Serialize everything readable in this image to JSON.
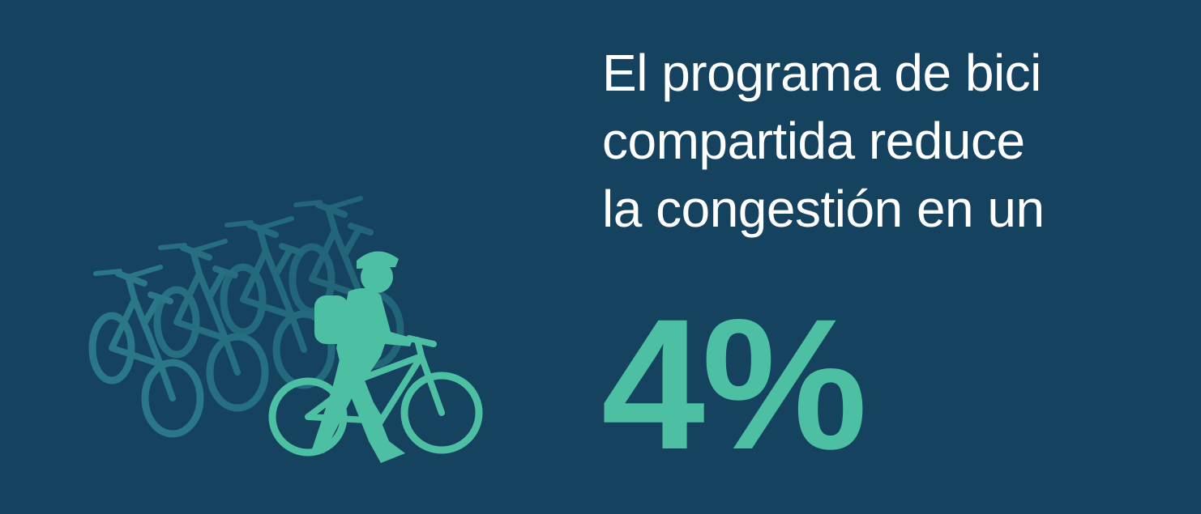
{
  "headline": {
    "lines": [
      "El programa de bici",
      "compartida reduce",
      "la congestión en un"
    ]
  },
  "stat": {
    "text": "4%"
  }
}
